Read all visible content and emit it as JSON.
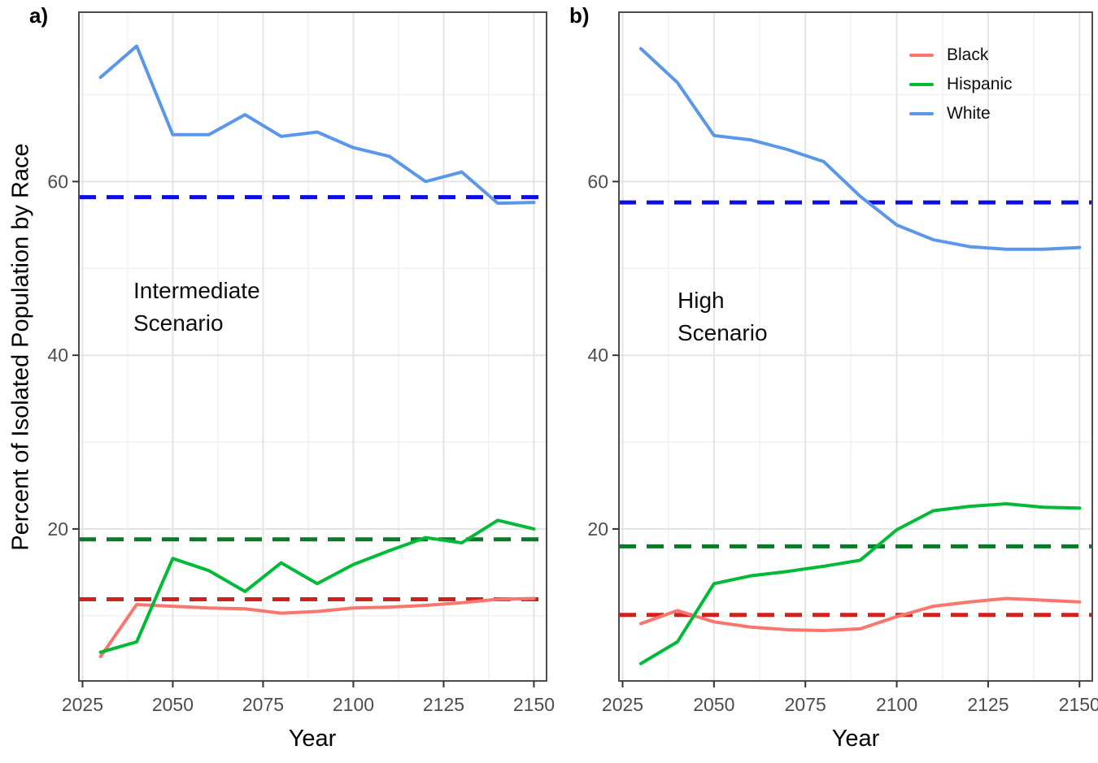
{
  "figure": {
    "ylabel": "Percent of Isolated Population by Race",
    "background": "#FFFFFF",
    "border_color": "#4D4D4D",
    "grid_major_color": "#E4E4E4",
    "grid_minor_color": "#F1F1F1",
    "tick_color": "#333333",
    "tick_label_color": "#4D4D4D"
  },
  "legend": {
    "position": "top-right",
    "items": [
      {
        "label": "Black",
        "color": "#F8766D"
      },
      {
        "label": "Hispanic",
        "color": "#00BA38"
      },
      {
        "label": "White",
        "color": "#5B97E8"
      }
    ]
  },
  "chart_data": [
    {
      "type": "line",
      "tag": "a)",
      "annotation_lines": [
        "Intermediate",
        "Scenario"
      ],
      "xlabel": "Year",
      "x_ticks": [
        2025,
        2050,
        2075,
        2100,
        2125,
        2150
      ],
      "y_ticks": [
        20,
        40,
        60
      ],
      "xlim": [
        2024,
        2153.5
      ],
      "ylim": [
        2.5,
        79.5
      ],
      "grid": true,
      "x": [
        2030,
        2040,
        2050,
        2060,
        2070,
        2080,
        2090,
        2100,
        2110,
        2120,
        2130,
        2140,
        2150
      ],
      "series": [
        {
          "name": "Black",
          "color": "#F8766D",
          "values": [
            5.3,
            11.3,
            11.1,
            10.9,
            10.8,
            10.3,
            10.5,
            10.9,
            11.0,
            11.2,
            11.5,
            11.9,
            12.0
          ]
        },
        {
          "name": "Hispanic",
          "color": "#00BA38",
          "values": [
            5.8,
            7.0,
            16.6,
            15.2,
            12.8,
            16.1,
            13.7,
            15.9,
            17.5,
            19.0,
            18.4,
            21.0,
            20.0
          ]
        },
        {
          "name": "White",
          "color": "#5B97E8",
          "values": [
            72.0,
            75.6,
            65.4,
            65.4,
            67.7,
            65.2,
            65.7,
            63.9,
            62.9,
            60.0,
            61.1,
            57.5,
            57.6
          ]
        }
      ],
      "ref_lines": [
        {
          "series": "White",
          "value": 58.2,
          "color": "#0D0DE8"
        },
        {
          "series": "Hispanic",
          "value": 18.8,
          "color": "#0B7A28"
        },
        {
          "series": "Black",
          "value": 11.9,
          "color": "#D2201C"
        }
      ]
    },
    {
      "type": "line",
      "tag": "b)",
      "annotation_lines": [
        "High",
        "Scenario"
      ],
      "xlabel": "Year",
      "x_ticks": [
        2025,
        2050,
        2075,
        2100,
        2125,
        2150
      ],
      "y_ticks": [
        20,
        40,
        60
      ],
      "xlim": [
        2024,
        2153.5
      ],
      "ylim": [
        2.5,
        79.5
      ],
      "grid": true,
      "x": [
        2030,
        2040,
        2050,
        2060,
        2070,
        2080,
        2090,
        2100,
        2110,
        2120,
        2130,
        2140,
        2150
      ],
      "series": [
        {
          "name": "Black",
          "color": "#F8766D",
          "values": [
            9.1,
            10.6,
            9.3,
            8.7,
            8.4,
            8.3,
            8.5,
            9.9,
            11.1,
            11.6,
            12.0,
            11.8,
            11.6
          ]
        },
        {
          "name": "Hispanic",
          "color": "#00BA38",
          "values": [
            4.5,
            7.0,
            13.7,
            14.6,
            15.1,
            15.7,
            16.4,
            19.9,
            22.1,
            22.6,
            22.9,
            22.5,
            22.4
          ]
        },
        {
          "name": "White",
          "color": "#5B97E8",
          "values": [
            75.3,
            71.4,
            65.3,
            64.8,
            63.7,
            62.3,
            58.3,
            55.0,
            53.3,
            52.5,
            52.2,
            52.2,
            52.4
          ]
        }
      ],
      "ref_lines": [
        {
          "series": "White",
          "value": 57.6,
          "color": "#0D0DE8"
        },
        {
          "series": "Hispanic",
          "value": 18.0,
          "color": "#0B7A28"
        },
        {
          "series": "Black",
          "value": 10.1,
          "color": "#D2201C"
        }
      ]
    }
  ]
}
